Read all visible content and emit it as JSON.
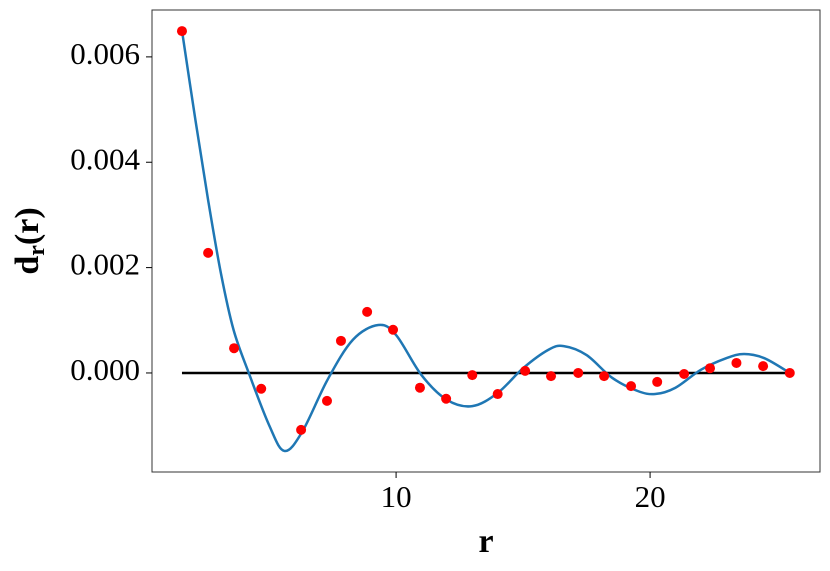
{
  "chart_data": {
    "type": "scatter",
    "xlabel": "r",
    "ylabel": {
      "base": "d",
      "sub": "r",
      "rest": "(r)"
    },
    "xlim": [
      0.39,
      26.69
    ],
    "ylim": [
      -0.00188,
      0.00689
    ],
    "xticks": [
      10,
      20
    ],
    "yticks": [
      {
        "value": 0,
        "label": "0.000"
      },
      {
        "value": 0.002,
        "label": "0.002"
      },
      {
        "value": 0.004,
        "label": "0.004"
      },
      {
        "value": 0.006,
        "label": "0.006"
      }
    ],
    "reference_line": {
      "y": 0,
      "x": [
        1.57,
        25.5
      ],
      "color": "#000000"
    },
    "series": [
      {
        "kind": "points",
        "color": "#ff0000",
        "x": [
          1.57,
          2.6,
          3.62,
          4.69,
          6.26,
          7.28,
          7.83,
          8.86,
          9.88,
          10.94,
          11.97,
          13.0,
          14.0,
          15.08,
          16.1,
          17.17,
          18.19,
          19.25,
          20.28,
          21.34,
          22.36,
          23.4,
          24.45,
          25.5
        ],
        "values": [
          0.00649,
          0.00228,
          0.00047,
          -0.0003,
          -0.00108,
          -0.00053,
          0.00061,
          0.00116,
          0.00082,
          -0.00028,
          -0.00049,
          -4e-05,
          -0.0004,
          4e-05,
          -6e-05,
          0,
          -6e-05,
          -0.00025,
          -0.00017,
          -2e-05,
          9e-05,
          0.00019,
          0.00013,
          0
        ]
      },
      {
        "kind": "curve",
        "color": "#1f77b4",
        "x": [
          1.57,
          2.1,
          2.6,
          3.1,
          3.6,
          4.2,
          5.0,
          5.6,
          6.3,
          7.3,
          8.3,
          9.3,
          10.0,
          11.0,
          12.0,
          13.0,
          14.0,
          15.0,
          16.0,
          16.6,
          17.5,
          18.5,
          19.5,
          20.2,
          21.0,
          22.0,
          23.0,
          23.7,
          24.5,
          25.5
        ],
        "values": [
          0.0065,
          0.0048,
          0.00328,
          0.0019,
          0.00082,
          0,
          -0.00099,
          -0.00148,
          -0.00112,
          -0.00013,
          0.00063,
          0.00091,
          0.00072,
          -4e-05,
          -0.00051,
          -0.00063,
          -0.00038,
          9e-05,
          0.00044,
          0.00051,
          0.00034,
          -9e-05,
          -0.00034,
          -0.0004,
          -0.00028,
          6e-05,
          0.00028,
          0.00036,
          0.00028,
          0
        ]
      }
    ]
  }
}
